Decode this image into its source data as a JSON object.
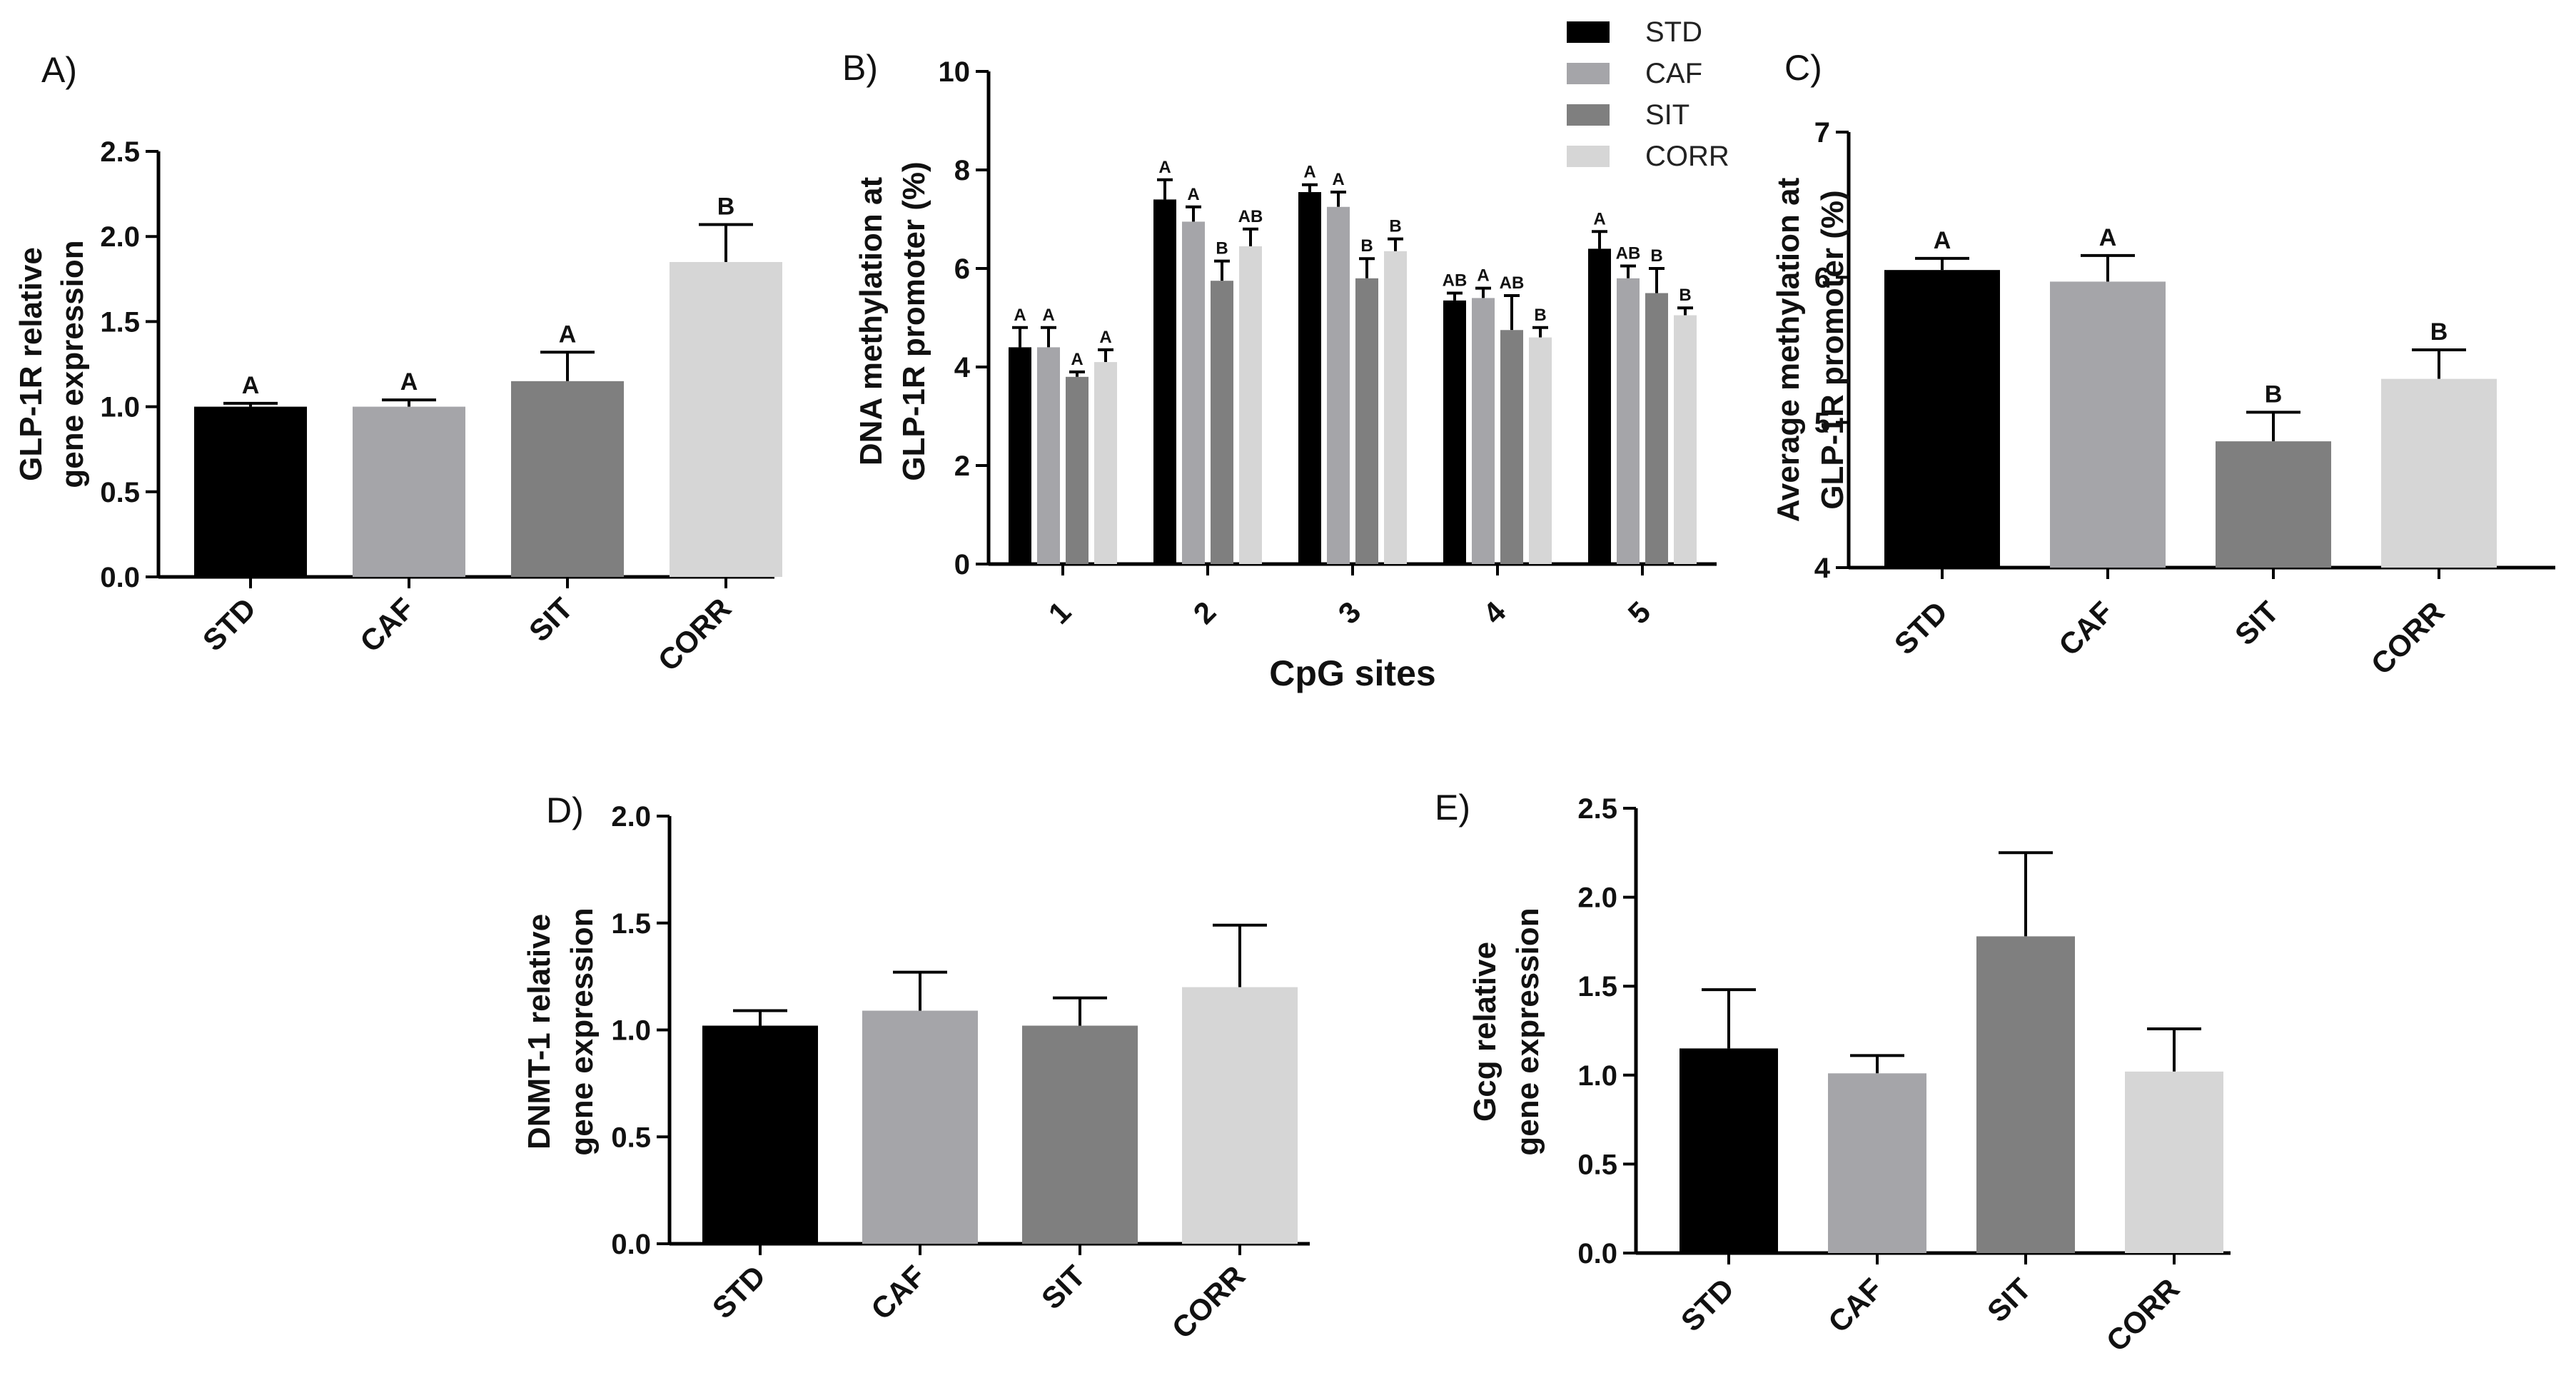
{
  "colors": {
    "STD": "#000000",
    "CAF": "#a5a5a9",
    "SIT": "#7f7f7f",
    "CORR": "#d6d6d6",
    "axis": "#000000"
  },
  "chart_data": [
    {
      "id": "A",
      "panel_label": "A)",
      "type": "bar",
      "ylabel": [
        "GLP-1R relative",
        "gene expression"
      ],
      "xlabel": "",
      "ylim": [
        0,
        2.5
      ],
      "yticks": [
        "0.0",
        "0.5",
        "1.0",
        "1.5",
        "2.0",
        "2.5"
      ],
      "categories": [
        "STD",
        "CAF",
        "SIT",
        "CORR"
      ],
      "values": [
        1.0,
        1.0,
        1.15,
        1.85
      ],
      "errors": [
        0.02,
        0.04,
        0.17,
        0.22
      ],
      "letters": [
        "A",
        "A",
        "A",
        "B"
      ]
    },
    {
      "id": "B",
      "panel_label": "B)",
      "type": "bar",
      "ylabel": [
        "DNA methylation at",
        "GLP-1R promoter (%)"
      ],
      "xlabel": "CpG sites",
      "ylim": [
        0,
        10
      ],
      "yticks": [
        "0",
        "2",
        "4",
        "6",
        "8",
        "10"
      ],
      "categories": [
        "1",
        "2",
        "3",
        "4",
        "5"
      ],
      "legend": [
        "STD",
        "CAF",
        "SIT",
        "CORR"
      ],
      "series": [
        {
          "name": "STD",
          "values": [
            4.4,
            7.4,
            7.55,
            5.35,
            6.4
          ],
          "errors": [
            0.4,
            0.4,
            0.15,
            0.15,
            0.35
          ],
          "letters": [
            "A",
            "A",
            "A",
            "AB",
            "A"
          ]
        },
        {
          "name": "CAF",
          "values": [
            4.4,
            6.95,
            7.25,
            5.4,
            5.8
          ],
          "errors": [
            0.4,
            0.3,
            0.3,
            0.2,
            0.25
          ],
          "letters": [
            "A",
            "A",
            "A",
            "A",
            "AB"
          ]
        },
        {
          "name": "SIT",
          "values": [
            3.8,
            5.75,
            5.8,
            4.75,
            5.5
          ],
          "errors": [
            0.1,
            0.4,
            0.4,
            0.7,
            0.5
          ],
          "letters": [
            "A",
            "B",
            "B",
            "AB",
            "B"
          ]
        },
        {
          "name": "CORR",
          "values": [
            4.1,
            6.45,
            6.35,
            4.6,
            5.05
          ],
          "errors": [
            0.25,
            0.35,
            0.25,
            0.2,
            0.15
          ],
          "letters": [
            "A",
            "AB",
            "B",
            "B",
            "B"
          ]
        }
      ]
    },
    {
      "id": "C",
      "panel_label": "C)",
      "type": "bar",
      "ylabel": [
        "Average methylation at",
        "GLP-1R promoter (%)"
      ],
      "xlabel": "",
      "ylim": [
        4,
        7
      ],
      "yticks": [
        "4",
        "5",
        "6",
        "7"
      ],
      "categories": [
        "STD",
        "CAF",
        "SIT",
        "CORR"
      ],
      "values": [
        6.05,
        5.97,
        4.87,
        5.3
      ],
      "errors": [
        0.08,
        0.18,
        0.2,
        0.2
      ],
      "letters": [
        "A",
        "A",
        "B",
        "B"
      ]
    },
    {
      "id": "D",
      "panel_label": "D)",
      "type": "bar",
      "ylabel": [
        "DNMT-1 relative",
        "gene expression"
      ],
      "xlabel": "",
      "ylim": [
        0,
        2
      ],
      "yticks": [
        "0.0",
        "0.5",
        "1.0",
        "1.5",
        "2.0"
      ],
      "categories": [
        "STD",
        "CAF",
        "SIT",
        "CORR"
      ],
      "values": [
        1.02,
        1.09,
        1.02,
        1.2
      ],
      "errors": [
        0.07,
        0.18,
        0.13,
        0.29
      ],
      "letters": []
    },
    {
      "id": "E",
      "panel_label": "E)",
      "type": "bar",
      "ylabel": [
        "Gcg relative",
        "gene expression"
      ],
      "xlabel": "",
      "ylim": [
        0,
        2.5
      ],
      "yticks": [
        "0.0",
        "0.5",
        "1.0",
        "1.5",
        "2.0",
        "2.5"
      ],
      "categories": [
        "STD",
        "CAF",
        "SIT",
        "CORR"
      ],
      "values": [
        1.15,
        1.01,
        1.78,
        1.02
      ],
      "errors": [
        0.33,
        0.1,
        0.47,
        0.24
      ],
      "letters": []
    }
  ]
}
